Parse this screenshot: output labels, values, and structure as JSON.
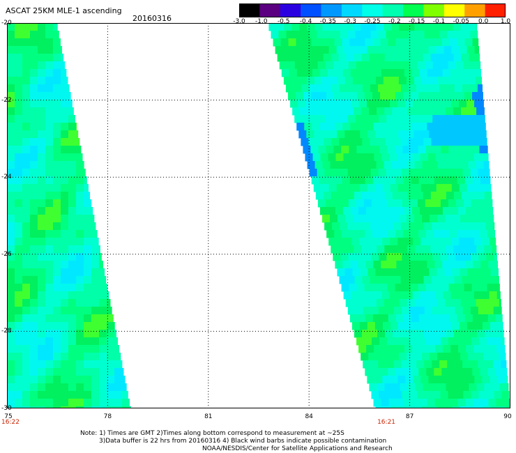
{
  "header": {
    "title": "ASCAT 25KM MLE-1 ascending",
    "date": "20160316"
  },
  "colorbar": {
    "labels": [
      "-3.0",
      "-1.0",
      "-0.5",
      "-0.4",
      "-0.35",
      "-0.3",
      "-0.25",
      "-0.2",
      "-0.15",
      "-0.1",
      "-0.05",
      "0.0",
      "1.0"
    ],
    "colors": [
      "#000000",
      "#5a0080",
      "#2a00e0",
      "#0050ff",
      "#0098ff",
      "#00d8ff",
      "#00ffe8",
      "#00ffb0",
      "#00ff50",
      "#80ff00",
      "#ffff00",
      "#ffa000",
      "#ff2000"
    ]
  },
  "map": {
    "lat_labels": [
      "-20",
      "-22",
      "-24",
      "-26",
      "-28",
      "-30"
    ],
    "lat_values": [
      -20,
      -22,
      -24,
      -26,
      -28,
      -30
    ],
    "lon_labels": [
      "75",
      "78",
      "81",
      "84",
      "87",
      "90"
    ],
    "lon_values": [
      75,
      78,
      81,
      84,
      87,
      90
    ],
    "lon_range": [
      75,
      90
    ],
    "lat_range": [
      -20,
      -30
    ],
    "times": [
      {
        "text": "16:22",
        "lon": 75
      },
      {
        "text": "16:21",
        "lon": 86.2
      }
    ],
    "swaths": [
      {
        "name": "west-swath",
        "lat_top": -20,
        "lat_bottom": -30,
        "lon_left": 75,
        "lon_right_top": 76.5,
        "lon_right_bottom": 78.7
      },
      {
        "name": "east-swath",
        "lat_top": -20,
        "lat_bottom": -30,
        "lon_left_top": 82.8,
        "lon_left_bottom": 86.0,
        "lon_right_top": 89.0,
        "lon_right_bottom": 90
      }
    ]
  },
  "notes": {
    "line1": "Note: 1) Times are GMT 2)Times along bottom correspond to measurement at ~25S",
    "line2": "3)Data buffer is 22 hrs from 20160316 4) Black wind barbs indicate possible contamination",
    "line3": "NOAA/NESDIS/Center for Satellite Applications and Research"
  }
}
